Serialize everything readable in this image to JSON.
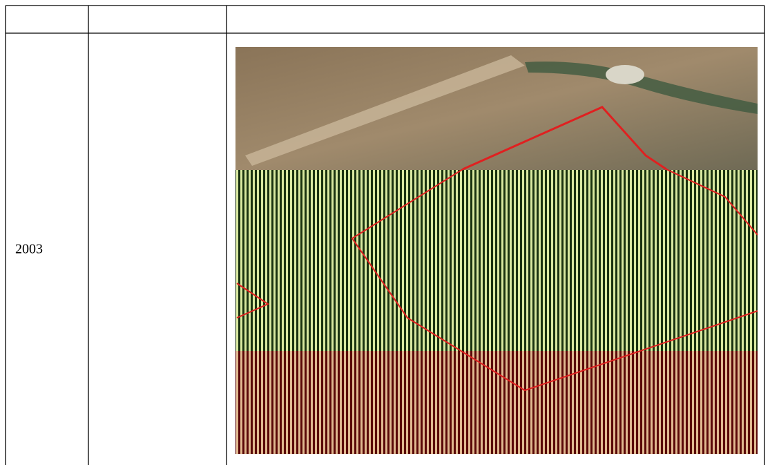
{
  "table": {
    "rows": [
      [
        "2003"
      ]
    ]
  }
}
